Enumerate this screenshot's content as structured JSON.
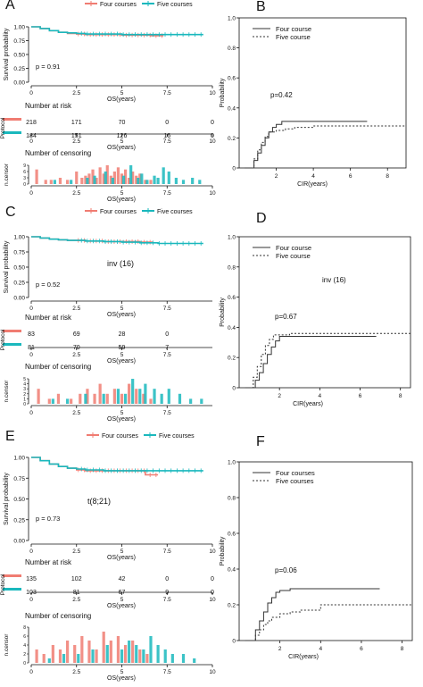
{
  "panels": {
    "A": {
      "letter": "A",
      "legend": [
        "Four courses",
        "Five courses"
      ],
      "ylabel": "Survival probability",
      "yticks": [
        "0.00",
        "0.25",
        "0.50",
        "0.75",
        "1.00"
      ],
      "xticks": [
        "0",
        "2.5",
        "5",
        "7.5",
        "10"
      ],
      "xlabel": "OS(years)",
      "pvalue": "p = 0.91",
      "annotation": "",
      "risk_title": "Number at risk",
      "risk_axis_label": "Protocol",
      "risk_rows": [
        [
          "218",
          "171",
          "70",
          "0",
          "0"
        ],
        [
          "184",
          "151",
          "126",
          "16",
          "0"
        ]
      ],
      "censor_title": "Number of censoring",
      "censor_axis_label": "n.censor",
      "censor_yticks": [
        "0",
        "3",
        "6",
        "9"
      ]
    },
    "B": {
      "letter": "B",
      "legend": [
        "Four course",
        "Five course"
      ],
      "ylabel": "Probability",
      "yticks": [
        "0",
        "0.2",
        "0.4",
        "0.6",
        "0.8",
        "1.0"
      ],
      "xticks": [
        "2",
        "4",
        "6",
        "8"
      ],
      "xlabel": "CIR(years)",
      "pvalue": "p=0.42",
      "annotation": ""
    },
    "C": {
      "letter": "C",
      "legend": [
        "Four courses",
        "Five courses"
      ],
      "ylabel": "Survival probability",
      "yticks": [
        "0.00",
        "0.25",
        "0.50",
        "0.75",
        "1.00"
      ],
      "xticks": [
        "0",
        "2.5",
        "5",
        "7.5"
      ],
      "xlabel": "OS(years)",
      "pvalue": "p = 0.52",
      "annotation": "inv (16)",
      "risk_title": "Number at risk",
      "risk_axis_label": "Protocol",
      "risk_rows": [
        [
          "83",
          "69",
          "28",
          "0"
        ],
        [
          "81",
          "70",
          "59",
          "7"
        ]
      ],
      "censor_title": "Number of censoring",
      "censor_axis_label": "n.censor",
      "censor_yticks": [
        "0",
        "1",
        "2",
        "3",
        "4",
        "5"
      ]
    },
    "D": {
      "letter": "D",
      "legend": [
        "Four course",
        "Five course"
      ],
      "ylabel": "Probability",
      "yticks": [
        "0",
        "0.2",
        "0.4",
        "0.6",
        "0.8",
        "1.0"
      ],
      "xticks": [
        "2",
        "4",
        "6",
        "8"
      ],
      "xlabel": "CIR(years)",
      "pvalue": "p=0.67",
      "annotation": "inv (16)"
    },
    "E": {
      "letter": "E",
      "legend": [
        "Four courses",
        "Five courses"
      ],
      "ylabel": "Survival probability",
      "yticks": [
        "0.00",
        "0.25",
        "0.50",
        "0.75",
        "1.00"
      ],
      "xticks": [
        "0",
        "2.5",
        "5",
        "7.5",
        "10"
      ],
      "xlabel": "OS(years)",
      "pvalue": "p = 0.73",
      "annotation": "t(8;21)",
      "risk_title": "Number at risk",
      "risk_axis_label": "Protocol",
      "risk_rows": [
        [
          "135",
          "102",
          "42",
          "0",
          "0"
        ],
        [
          "103",
          "81",
          "67",
          "9",
          "0"
        ]
      ],
      "censor_title": "Number of censoring",
      "censor_axis_label": "n.censor",
      "censor_yticks": [
        "0",
        "2",
        "4",
        "6",
        "8"
      ]
    },
    "F": {
      "letter": "F",
      "legend": [
        "Four courses",
        "Five courses"
      ],
      "ylabel": "Probability",
      "yticks": [
        "0",
        "0.2",
        "0.4",
        "0.6",
        "0.8",
        "1.0"
      ],
      "xticks": [
        "2",
        "4",
        "6",
        "8"
      ],
      "xlabel": "CIR(years)",
      "pvalue": "p=0.06",
      "annotation": ""
    }
  },
  "colors": {
    "four": "#f07c72",
    "five": "#1ab8bd",
    "cir": "#333333"
  },
  "chart_data": [
    {
      "panel": "A",
      "type": "line",
      "xlabel": "OS(years)",
      "ylabel": "Survival probability",
      "xlim": [
        0,
        10
      ],
      "ylim": [
        0,
        1
      ],
      "series": [
        {
          "name": "Four courses",
          "x": [
            0,
            0.5,
            1,
            1.5,
            2,
            2.5,
            3,
            4,
            5,
            6,
            6.6,
            7.3
          ],
          "y": [
            1,
            0.97,
            0.93,
            0.9,
            0.88,
            0.87,
            0.86,
            0.86,
            0.85,
            0.85,
            0.84,
            0.84
          ]
        },
        {
          "name": "Five courses",
          "x": [
            0,
            0.5,
            1,
            1.5,
            2,
            2.5,
            3,
            4,
            5,
            6,
            7,
            8,
            9.5
          ],
          "y": [
            1,
            0.97,
            0.93,
            0.9,
            0.89,
            0.88,
            0.87,
            0.87,
            0.86,
            0.86,
            0.86,
            0.86,
            0.86
          ]
        }
      ]
    },
    {
      "panel": "A",
      "type": "table",
      "title": "Number at risk",
      "x": [
        0,
        2.5,
        5,
        7.5,
        10
      ],
      "series": [
        {
          "name": "Four courses",
          "values": [
            218,
            171,
            70,
            0,
            0
          ]
        },
        {
          "name": "Five courses",
          "values": [
            184,
            151,
            126,
            16,
            0
          ]
        }
      ]
    },
    {
      "panel": "A",
      "type": "bar",
      "title": "Number of censoring",
      "ylabel": "n.censor",
      "xlim": [
        0,
        10
      ],
      "ylim": [
        0,
        9
      ],
      "series": [
        {
          "name": "Four courses",
          "x": [
            0.3,
            0.8,
            1.1,
            1.6,
            2.0,
            2.5,
            2.8,
            3.0,
            3.2,
            3.4,
            3.6,
            3.8,
            4.0,
            4.2,
            4.4,
            4.6,
            4.8,
            5.0,
            5.2,
            5.4,
            5.6,
            5.8,
            6.0,
            6.3,
            6.6
          ],
          "values": [
            7,
            2,
            2,
            3,
            2,
            6,
            3,
            4,
            5,
            7,
            3,
            8,
            5,
            9,
            4,
            6,
            8,
            5,
            7,
            3,
            6,
            4,
            5,
            2,
            2
          ]
        },
        {
          "name": "Five courses",
          "x": [
            1.3,
            2.2,
            3.1,
            3.5,
            4.1,
            4.5,
            5.1,
            5.5,
            5.9,
            6.1,
            6.4,
            6.8,
            7.0,
            7.3,
            7.6,
            8.0,
            8.4,
            8.9,
            9.3
          ],
          "values": [
            2,
            2,
            3,
            4,
            6,
            3,
            4,
            9,
            3,
            5,
            2,
            4,
            3,
            8,
            6,
            3,
            2,
            3,
            2
          ]
        }
      ]
    },
    {
      "panel": "B",
      "type": "line",
      "xlabel": "CIR(years)",
      "ylabel": "Probability",
      "xlim": [
        0,
        9
      ],
      "ylim": [
        0,
        1
      ],
      "series": [
        {
          "name": "Four course",
          "x": [
            0.3,
            0.8,
            1.0,
            1.2,
            1.4,
            1.6,
            1.8,
            2.0,
            2.3,
            2.6,
            6.9
          ],
          "y": [
            0,
            0.05,
            0.1,
            0.15,
            0.2,
            0.24,
            0.27,
            0.29,
            0.31,
            0.31,
            0.31
          ]
        },
        {
          "name": "Five course",
          "x": [
            0.3,
            0.8,
            1.0,
            1.2,
            1.4,
            1.6,
            2.0,
            2.5,
            3.0,
            4.0,
            9.0
          ],
          "y": [
            0,
            0.06,
            0.12,
            0.17,
            0.21,
            0.24,
            0.25,
            0.26,
            0.27,
            0.28,
            0.28
          ]
        }
      ]
    },
    {
      "panel": "C",
      "type": "line",
      "xlabel": "OS(years)",
      "ylabel": "Survival probability",
      "xlim": [
        0,
        10
      ],
      "ylim": [
        0,
        1
      ],
      "series": [
        {
          "name": "Four courses",
          "x": [
            0,
            0.5,
            1,
            1.5,
            2,
            3,
            4,
            5,
            6,
            6.7
          ],
          "y": [
            1,
            0.98,
            0.96,
            0.95,
            0.94,
            0.93,
            0.92,
            0.92,
            0.91,
            0.91
          ]
        },
        {
          "name": "Five courses",
          "x": [
            0,
            0.5,
            1,
            1.5,
            2,
            3,
            4,
            5,
            6,
            7,
            8,
            9.5
          ],
          "y": [
            1,
            0.98,
            0.96,
            0.95,
            0.94,
            0.93,
            0.92,
            0.91,
            0.9,
            0.89,
            0.89,
            0.89
          ]
        }
      ]
    },
    {
      "panel": "C",
      "type": "table",
      "title": "Number at risk",
      "x": [
        0,
        2.5,
        5,
        7.5
      ],
      "series": [
        {
          "name": "Four courses",
          "values": [
            83,
            69,
            28,
            0
          ]
        },
        {
          "name": "Five courses",
          "values": [
            81,
            70,
            59,
            7
          ]
        }
      ]
    },
    {
      "panel": "C",
      "type": "bar",
      "title": "Number of censoring",
      "ylabel": "n.censor",
      "xlim": [
        0,
        10
      ],
      "ylim": [
        0,
        5
      ],
      "series": [
        {
          "name": "Four courses",
          "x": [
            0.4,
            1.0,
            1.5,
            2.2,
            2.7,
            3.1,
            3.5,
            3.8,
            4.2,
            4.6,
            5.0,
            5.4,
            5.8,
            6.2,
            6.6
          ],
          "values": [
            3,
            1,
            2,
            1,
            2,
            3,
            2,
            4,
            2,
            3,
            2,
            4,
            3,
            2,
            1
          ]
        },
        {
          "name": "Five courses",
          "x": [
            1.2,
            2.0,
            3.0,
            4.0,
            4.8,
            5.2,
            5.6,
            6.0,
            6.3,
            6.8,
            7.2,
            7.6,
            8.2,
            8.8,
            9.4
          ],
          "values": [
            1,
            1,
            2,
            2,
            3,
            2,
            5,
            3,
            4,
            3,
            2,
            3,
            2,
            1,
            1
          ]
        }
      ]
    },
    {
      "panel": "D",
      "type": "line",
      "xlabel": "CIR(years)",
      "ylabel": "Probability",
      "xlim": [
        0,
        8.5
      ],
      "ylim": [
        0,
        1
      ],
      "series": [
        {
          "name": "Four course",
          "x": [
            0.3,
            0.8,
            1.0,
            1.2,
            1.4,
            1.6,
            1.8,
            2.0,
            6.8
          ],
          "y": [
            0,
            0.05,
            0.1,
            0.16,
            0.22,
            0.27,
            0.31,
            0.34,
            0.34
          ]
        },
        {
          "name": "Five course",
          "x": [
            0.3,
            0.7,
            0.9,
            1.1,
            1.3,
            1.5,
            1.7,
            2.5,
            8.5
          ],
          "y": [
            0,
            0.07,
            0.14,
            0.22,
            0.28,
            0.32,
            0.35,
            0.36,
            0.36
          ]
        }
      ]
    },
    {
      "panel": "E",
      "type": "line",
      "xlabel": "OS(years)",
      "ylabel": "Survival probability",
      "xlim": [
        0,
        10
      ],
      "ylim": [
        0,
        1
      ],
      "series": [
        {
          "name": "Four courses",
          "x": [
            0,
            0.5,
            1,
            1.5,
            2,
            2.5,
            3,
            4,
            5,
            6,
            6.3,
            7.0
          ],
          "y": [
            1,
            0.96,
            0.92,
            0.89,
            0.87,
            0.85,
            0.84,
            0.84,
            0.84,
            0.84,
            0.79,
            0.79
          ]
        },
        {
          "name": "Five courses",
          "x": [
            0,
            0.5,
            1,
            1.5,
            2,
            2.5,
            3,
            4,
            5,
            6,
            7,
            8,
            9.5
          ],
          "y": [
            1,
            0.96,
            0.92,
            0.89,
            0.87,
            0.86,
            0.85,
            0.84,
            0.84,
            0.84,
            0.84,
            0.84,
            0.84
          ]
        }
      ]
    },
    {
      "panel": "E",
      "type": "table",
      "title": "Number at risk",
      "x": [
        0,
        2.5,
        5,
        7.5,
        10
      ],
      "series": [
        {
          "name": "Four courses",
          "values": [
            135,
            102,
            42,
            0,
            0
          ]
        },
        {
          "name": "Five courses",
          "values": [
            103,
            81,
            67,
            9,
            0
          ]
        }
      ]
    },
    {
      "panel": "E",
      "type": "bar",
      "title": "Number of censoring",
      "ylabel": "n.censor",
      "xlim": [
        0,
        10
      ],
      "ylim": [
        0,
        8
      ],
      "series": [
        {
          "name": "Four courses",
          "x": [
            0.3,
            0.7,
            1.2,
            1.6,
            2.0,
            2.4,
            2.8,
            3.2,
            3.6,
            4.0,
            4.4,
            4.8,
            5.2,
            5.6,
            6.0,
            6.4
          ],
          "values": [
            3,
            2,
            4,
            3,
            5,
            4,
            6,
            5,
            3,
            7,
            5,
            6,
            4,
            5,
            3,
            2
          ]
        },
        {
          "name": "Five courses",
          "x": [
            1.0,
            1.8,
            2.6,
            3.4,
            4.2,
            5.0,
            5.4,
            5.8,
            6.2,
            6.6,
            7.0,
            7.4,
            7.8,
            8.4,
            9.0
          ],
          "values": [
            1,
            2,
            2,
            3,
            4,
            3,
            5,
            4,
            3,
            6,
            4,
            3,
            2,
            2,
            1
          ]
        }
      ]
    },
    {
      "panel": "F",
      "type": "line",
      "xlabel": "CIR(years)",
      "ylabel": "Probability",
      "xlim": [
        0,
        8.5
      ],
      "ylim": [
        0,
        1
      ],
      "series": [
        {
          "name": "Four courses",
          "x": [
            0.3,
            0.8,
            1.0,
            1.2,
            1.4,
            1.6,
            1.8,
            2.0,
            2.5,
            6.9
          ],
          "y": [
            0,
            0.06,
            0.11,
            0.16,
            0.21,
            0.24,
            0.27,
            0.28,
            0.29,
            0.29
          ]
        },
        {
          "name": "Five courses",
          "x": [
            0.3,
            0.8,
            1.0,
            1.2,
            1.4,
            1.6,
            2.0,
            2.5,
            3.0,
            4.0,
            8.5
          ],
          "y": [
            0,
            0.03,
            0.06,
            0.09,
            0.11,
            0.13,
            0.15,
            0.16,
            0.17,
            0.2,
            0.2
          ]
        }
      ]
    }
  ]
}
